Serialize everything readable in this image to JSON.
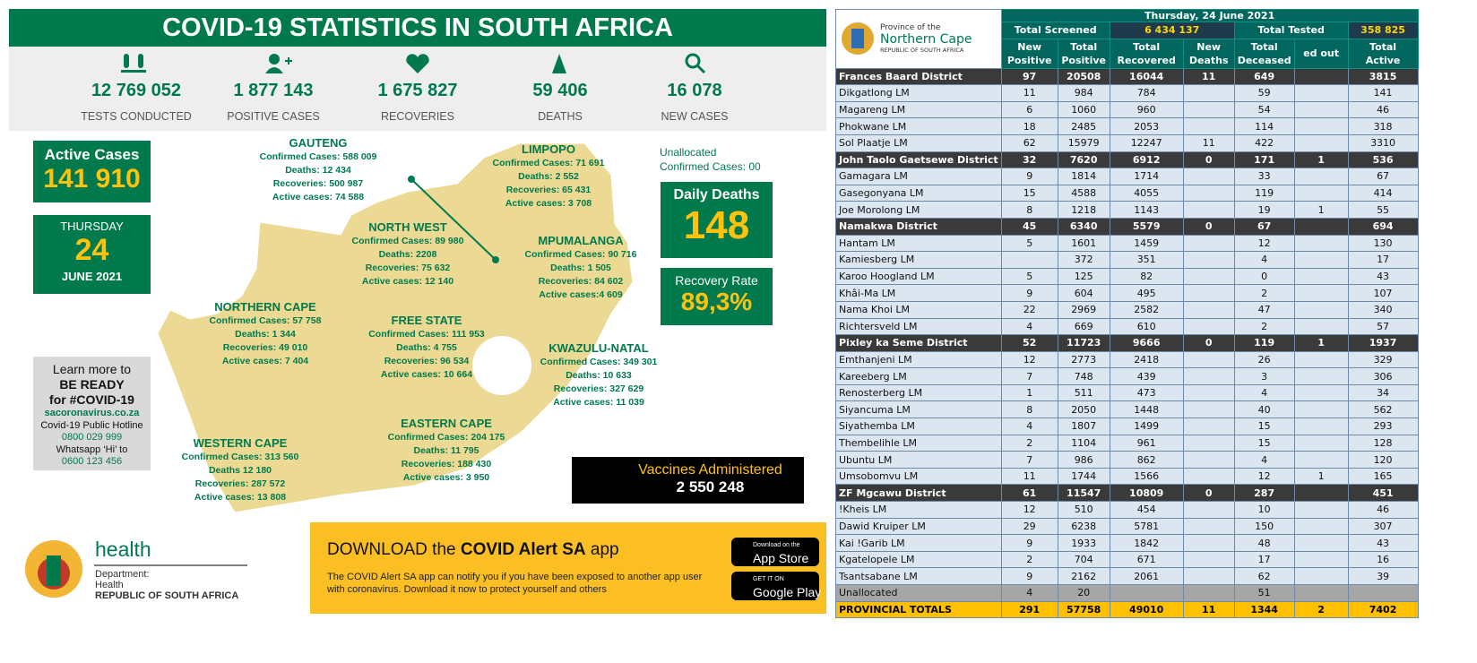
{
  "header": {
    "title": "COVID-19 STATISTICS IN SOUTH AFRICA"
  },
  "stats": [
    {
      "value": "12 769 052",
      "label": "TESTS CONDUCTED"
    },
    {
      "value": "1  877 143",
      "label": "POSITIVE CASES"
    },
    {
      "value": "1 675 827",
      "label": "RECOVERIES"
    },
    {
      "value": "59 406",
      "label": "DEATHS"
    },
    {
      "value": "16 078",
      "label": "NEW CASES"
    }
  ],
  "active_cases": {
    "label": "Active Cases",
    "value": "141 910"
  },
  "date_box": {
    "weekday": "THURSDAY",
    "day": "24",
    "month_year": "JUNE 2021"
  },
  "unallocated": [
    "Unallocated",
    "Confirmed Cases: 00"
  ],
  "daily_deaths": {
    "label": "Daily Deaths",
    "value": "148"
  },
  "recovery_rate": {
    "label": "Recovery Rate",
    "value": "89,3%"
  },
  "provinces": [
    {
      "name": "GAUTENG",
      "lines": [
        "Confirmed Cases:   588 009",
        "Deaths: 12 434",
        "Recoveries: 500 987",
        "Active cases: 74 588"
      ]
    },
    {
      "name": "LIMPOPO",
      "lines": [
        "Confirmed Cases: 71 691",
        "Deaths: 2 552",
        "Recoveries: 65 431",
        "Active cases: 3 708"
      ]
    },
    {
      "name": "NORTH WEST",
      "lines": [
        "Confirmed Cases: 89 980",
        "Deaths: 2208",
        "Recoveries: 75 632",
        "Active cases: 12 140"
      ]
    },
    {
      "name": "MPUMALANGA",
      "lines": [
        "Confirmed Cases: 90 716",
        "Deaths:  1 505",
        "Recoveries: 84 602",
        "Active cases:4 609"
      ]
    },
    {
      "name": "NORTHERN CAPE",
      "lines": [
        "Confirmed Cases: 57 758",
        "Deaths: 1 344",
        "Recoveries: 49 010",
        "Active cases: 7 404"
      ]
    },
    {
      "name": "FREE STATE",
      "lines": [
        "Confirmed Cases: 111 953",
        "Deaths: 4 755",
        "Recoveries:  96 534",
        "Active cases: 10 664"
      ]
    },
    {
      "name": "KWAZULU-NATAL",
      "lines": [
        "Confirmed Cases: 349 301",
        "Deaths: 10 633",
        "Recoveries: 327 629",
        "Active cases: 11 039"
      ]
    },
    {
      "name": "EASTERN CAPE",
      "lines": [
        "Confirmed Cases: 204 175",
        "Deaths: 11 795",
        "Recoveries: 188 430",
        "Active cases: 3 950"
      ]
    },
    {
      "name": "WESTERN CAPE",
      "lines": [
        "Confirmed Cases: 313 560",
        "Deaths 12 180",
        "Recoveries: 287 572",
        "Active cases: 13 808"
      ]
    }
  ],
  "learn_more": [
    "Learn more to",
    "BE READY",
    "for #COVID-19",
    "sacoronavirus.co.za",
    "Covid-19 Public Hotline",
    "0800 029 999",
    "Whatsapp ‘Hi’ to",
    "0600 123 456"
  ],
  "vaccines": {
    "label": "Vaccines Administered",
    "value": "2 550 248"
  },
  "health_logo": [
    "health",
    "Department:",
    "Health",
    "REPUBLIC OF SOUTH AFRICA"
  ],
  "app": {
    "title_prefix": "DOWNLOAD the",
    "title_bold": "COVID Alert SA",
    "title_suffix": "app",
    "text": "The COVID Alert SA app can notify you if you have been exposed to another app user with coronavirus. Download it now to protect yourself and others",
    "app_store": [
      "Download on the",
      "App Store"
    ],
    "google_play": [
      "GET IT ON",
      "Google Play"
    ]
  },
  "table": {
    "logo": [
      "Province of the",
      "Northern Cape",
      "REPUBLIC OF SOUTH AFRICA"
    ],
    "date": "Thursday, 24 June 2021",
    "screened_label": "Total Screened",
    "screened_value": "6 434 137",
    "tested_label": "Total Tested",
    "tested_value": "358 825",
    "columns": [
      "New Positive",
      "Total Positive",
      "Total Recovered",
      "New Deaths",
      "Total Deceased",
      "ed out",
      "Total Active"
    ],
    "rows": [
      {
        "style": "district",
        "cells": [
          "Frances Baard District",
          97,
          20508,
          16044,
          11,
          649,
          null,
          3815
        ]
      },
      {
        "style": "lm",
        "cells": [
          "Dikgatlong LM",
          11,
          984,
          784,
          null,
          59,
          null,
          141
        ]
      },
      {
        "style": "lm",
        "cells": [
          "Magareng LM",
          6,
          1060,
          960,
          null,
          54,
          null,
          46
        ]
      },
      {
        "style": "lm",
        "cells": [
          "Phokwane LM",
          18,
          2485,
          2053,
          null,
          114,
          null,
          318
        ]
      },
      {
        "style": "lm",
        "cells": [
          "Sol Plaatje LM",
          62,
          15979,
          12247,
          11,
          422,
          null,
          3310
        ]
      },
      {
        "style": "district",
        "cells": [
          "John Taolo Gaetsewe District",
          32,
          7620,
          6912,
          0,
          171,
          1,
          536
        ]
      },
      {
        "style": "lm",
        "cells": [
          "Gamagara LM",
          9,
          1814,
          1714,
          null,
          33,
          null,
          67
        ]
      },
      {
        "style": "lm",
        "cells": [
          "Gasegonyana LM",
          15,
          4588,
          4055,
          null,
          119,
          null,
          414
        ]
      },
      {
        "style": "lm",
        "cells": [
          "Joe Morolong LM",
          8,
          1218,
          1143,
          null,
          19,
          1,
          55
        ]
      },
      {
        "style": "district",
        "cells": [
          "Namakwa District",
          45,
          6340,
          5579,
          0,
          67,
          null,
          694
        ]
      },
      {
        "style": "lm",
        "cells": [
          "Hantam LM",
          5,
          1601,
          1459,
          null,
          12,
          null,
          130
        ]
      },
      {
        "style": "lm",
        "cells": [
          "Kamiesberg LM",
          null,
          372,
          351,
          null,
          4,
          null,
          17
        ]
      },
      {
        "style": "lm",
        "cells": [
          "Karoo Hoogland LM",
          5,
          125,
          82,
          null,
          0,
          null,
          43
        ]
      },
      {
        "style": "lm",
        "cells": [
          "Khâi-Ma LM",
          9,
          604,
          495,
          null,
          2,
          null,
          107
        ]
      },
      {
        "style": "lm",
        "cells": [
          "Nama Khoi LM",
          22,
          2969,
          2582,
          null,
          47,
          null,
          340
        ]
      },
      {
        "style": "lm",
        "cells": [
          "Richtersveld LM",
          4,
          669,
          610,
          null,
          2,
          null,
          57
        ]
      },
      {
        "style": "district",
        "cells": [
          "Pixley ka Seme District",
          52,
          11723,
          9666,
          0,
          119,
          1,
          1937
        ]
      },
      {
        "style": "lm",
        "cells": [
          "Emthanjeni LM",
          12,
          2773,
          2418,
          null,
          26,
          null,
          329
        ]
      },
      {
        "style": "lm",
        "cells": [
          "Kareeberg LM",
          7,
          748,
          439,
          null,
          3,
          null,
          306
        ]
      },
      {
        "style": "lm",
        "cells": [
          "Renosterberg LM",
          1,
          511,
          473,
          null,
          4,
          null,
          34
        ]
      },
      {
        "style": "lm",
        "cells": [
          "Siyancuma LM",
          8,
          2050,
          1448,
          null,
          40,
          null,
          562
        ]
      },
      {
        "style": "lm",
        "cells": [
          "Siyathemba LM",
          4,
          1807,
          1499,
          null,
          15,
          null,
          293
        ]
      },
      {
        "style": "lm",
        "cells": [
          "Thembelihle LM",
          2,
          1104,
          961,
          null,
          15,
          null,
          128
        ]
      },
      {
        "style": "lm",
        "cells": [
          "Ubuntu LM",
          7,
          986,
          862,
          null,
          4,
          null,
          120
        ]
      },
      {
        "style": "lm",
        "cells": [
          "Umsobomvu LM",
          11,
          1744,
          1566,
          null,
          12,
          1,
          165
        ]
      },
      {
        "style": "district",
        "cells": [
          "ZF Mgcawu District",
          61,
          11547,
          10809,
          0,
          287,
          null,
          451
        ]
      },
      {
        "style": "lm",
        "cells": [
          "!Kheis LM",
          12,
          510,
          454,
          null,
          10,
          null,
          46
        ]
      },
      {
        "style": "lm",
        "cells": [
          "Dawid Kruiper LM",
          29,
          6238,
          5781,
          null,
          150,
          null,
          307
        ]
      },
      {
        "style": "lm",
        "cells": [
          "Kai !Garib LM",
          9,
          1933,
          1842,
          null,
          48,
          null,
          43
        ]
      },
      {
        "style": "lm",
        "cells": [
          "Kgatelopele LM",
          2,
          704,
          671,
          null,
          17,
          null,
          16
        ]
      },
      {
        "style": "lm",
        "cells": [
          "Tsantsabane LM",
          9,
          2162,
          2061,
          null,
          62,
          null,
          39
        ]
      },
      {
        "style": "unallocated",
        "cells": [
          "Unallocated",
          4,
          20,
          null,
          null,
          51,
          null,
          null
        ]
      },
      {
        "style": "total",
        "cells": [
          "PROVINCIAL TOTALS",
          291,
          57758,
          49010,
          11,
          1344,
          2,
          7402
        ]
      }
    ]
  }
}
